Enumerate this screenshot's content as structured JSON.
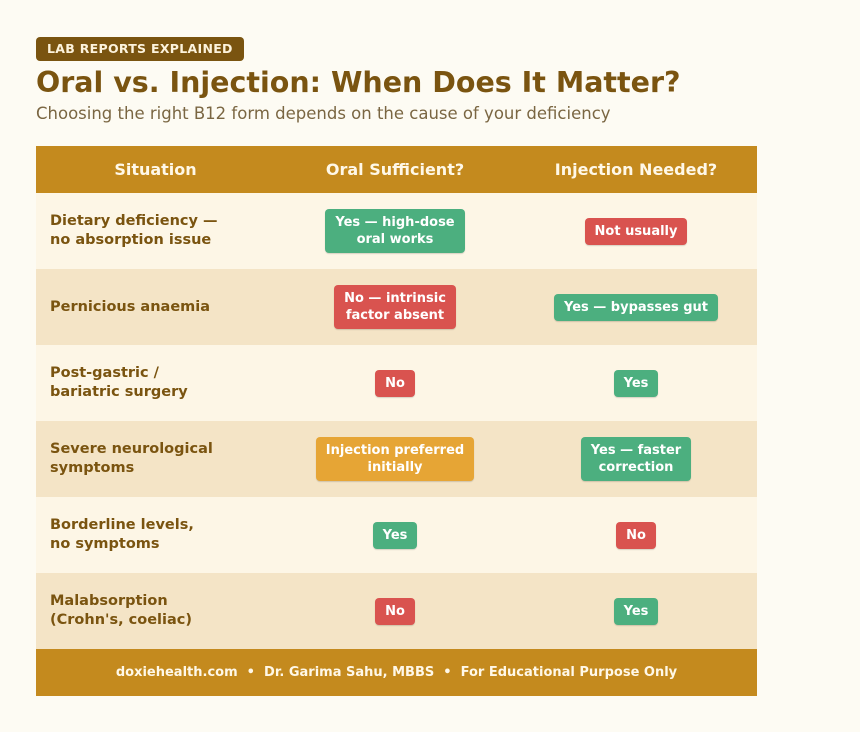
{
  "header": {
    "badge": "LAB REPORTS EXPLAINED",
    "title": "Oral vs. Injection: When Does It Matter?",
    "subtitle": "Choosing the right B12 form depends on the cause of your deficiency"
  },
  "table": {
    "columns": [
      "Situation",
      "Oral Sufficient?",
      "Injection Needed?"
    ],
    "rows": [
      {
        "situation": "Dietary deficiency —\nno absorption issue",
        "oral": {
          "text": "Yes — high-dose\noral works",
          "tone": "green"
        },
        "injection": {
          "text": "Not usually",
          "tone": "red"
        }
      },
      {
        "situation": "Pernicious anaemia",
        "oral": {
          "text": "No — intrinsic\nfactor absent",
          "tone": "red"
        },
        "injection": {
          "text": "Yes — bypasses gut",
          "tone": "green"
        }
      },
      {
        "situation": "Post-gastric /\nbariatric surgery",
        "oral": {
          "text": "No",
          "tone": "red"
        },
        "injection": {
          "text": "Yes",
          "tone": "green"
        }
      },
      {
        "situation": "Severe neurological\nsymptoms",
        "oral": {
          "text": "Injection preferred\ninitially",
          "tone": "orange"
        },
        "injection": {
          "text": "Yes — faster\ncorrection",
          "tone": "green"
        }
      },
      {
        "situation": "Borderline levels,\nno symptoms",
        "oral": {
          "text": "Yes",
          "tone": "green"
        },
        "injection": {
          "text": "No",
          "tone": "red"
        }
      },
      {
        "situation": "Malabsorption\n(Crohn's, coeliac)",
        "oral": {
          "text": "No",
          "tone": "red"
        },
        "injection": {
          "text": "Yes",
          "tone": "green"
        }
      }
    ]
  },
  "footer": "doxiehealth.com  •  Dr. Garima Sahu, MBBS  •  For Educational Purpose Only"
}
